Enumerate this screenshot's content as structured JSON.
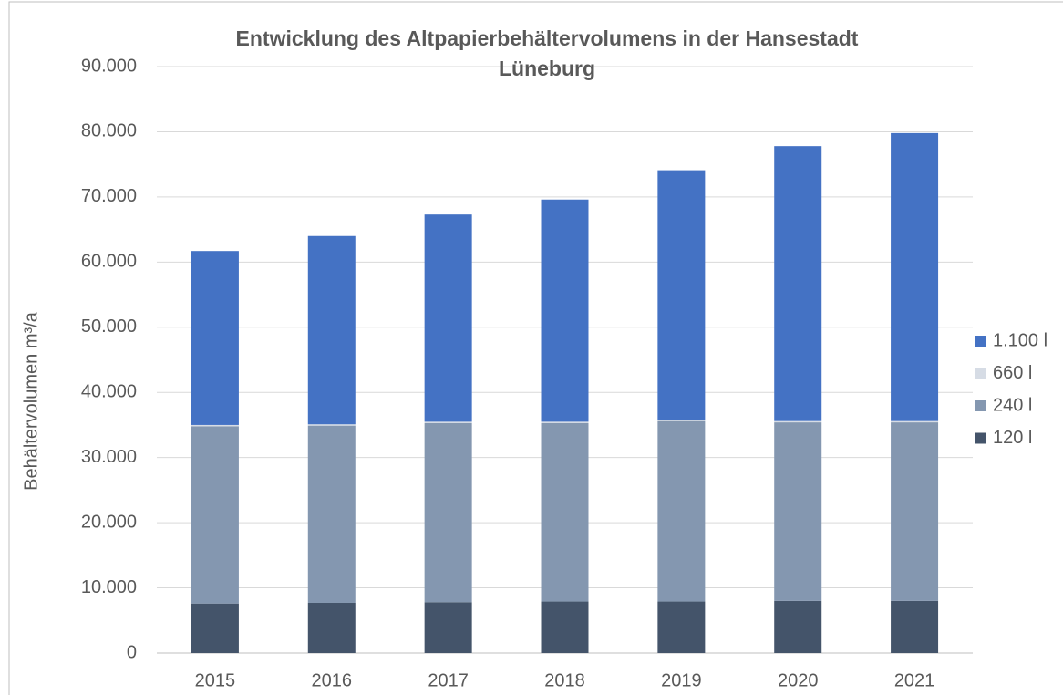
{
  "chart_data": {
    "type": "bar",
    "stacked": true,
    "title": "Entwicklung des Altpapierbehältervolumens in der Hansestadt Lüneburg",
    "y_label": "Behältervolumen  m³/a",
    "categories": [
      "2015",
      "2016",
      "2017",
      "2018",
      "2019",
      "2020",
      "2021"
    ],
    "series": [
      {
        "name": "120 l",
        "color": "#44546a",
        "values": [
          7600,
          7700,
          7800,
          7900,
          7900,
          8000,
          8000
        ]
      },
      {
        "name": "240 l",
        "color": "#8497b0",
        "values": [
          27200,
          27200,
          27500,
          27400,
          27700,
          27400,
          27400
        ]
      },
      {
        "name": "660 l",
        "color": "#d6dce5",
        "values": [
          200,
          200,
          200,
          200,
          200,
          200,
          200
        ]
      },
      {
        "name": "1.100 l",
        "color": "#4472c4",
        "values": [
          26700,
          28900,
          31800,
          34100,
          38300,
          42200,
          44200
        ]
      }
    ],
    "ylim": [
      0,
      90000
    ],
    "yticks": [
      0,
      {
        "value": 10000,
        "label": "10.000"
      },
      {
        "value": 20000,
        "label": "20.000"
      },
      {
        "value": 30000,
        "label": "30.000"
      },
      {
        "value": 40000,
        "label": "40.000"
      },
      {
        "value": 50000,
        "label": "50.000"
      },
      {
        "value": 60000,
        "label": "60.000"
      },
      {
        "value": 70000,
        "label": "70.000"
      },
      {
        "value": 80000,
        "label": "80.000"
      },
      {
        "value": 90000,
        "label": "90.000"
      }
    ],
    "grid": true,
    "legend": "right"
  }
}
